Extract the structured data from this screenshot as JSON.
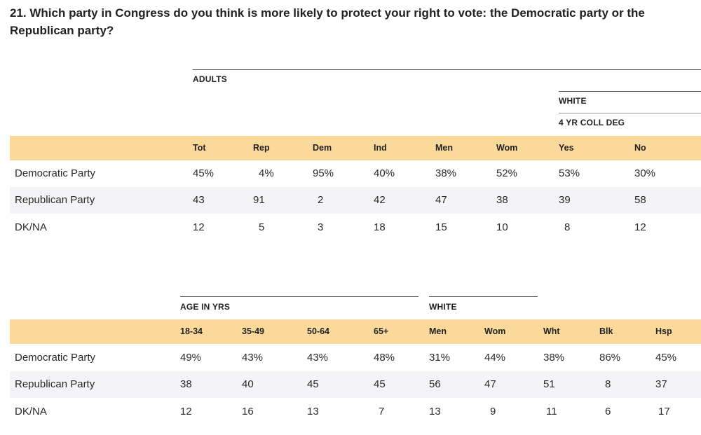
{
  "question": "21. Which party in Congress do you think is more likely to protect your right to vote: the Democratic party or the Republican party?",
  "table1": {
    "group_adults": "ADULTS",
    "group_white": "WHITE",
    "group_college": "4 YR COLL DEG",
    "columns": [
      "Tot",
      "Rep",
      "Dem",
      "Ind",
      "Men",
      "Wom",
      "Yes",
      "No"
    ],
    "rows": [
      {
        "label": "Democratic Party",
        "values": [
          "45%",
          "4%",
          "95%",
          "40%",
          "38%",
          "52%",
          "53%",
          "30%"
        ]
      },
      {
        "label": "Republican Party",
        "values": [
          "43",
          "91",
          "2",
          "42",
          "47",
          "38",
          "39",
          "58"
        ]
      },
      {
        "label": "DK/NA",
        "values": [
          "12",
          "5",
          "3",
          "18",
          "15",
          "10",
          "8",
          "12"
        ]
      }
    ]
  },
  "table2": {
    "group_age": "AGE IN YRS",
    "group_white": "WHITE",
    "columns": [
      "18-34",
      "35-49",
      "50-64",
      "65+",
      "Men",
      "Wom",
      "Wht",
      "Blk",
      "Hsp"
    ],
    "rows": [
      {
        "label": "Democratic Party",
        "values": [
          "49%",
          "43%",
          "43%",
          "48%",
          "31%",
          "44%",
          "38%",
          "86%",
          "45%"
        ]
      },
      {
        "label": "Republican Party",
        "values": [
          "38",
          "40",
          "45",
          "45",
          "56",
          "47",
          "51",
          "8",
          "37"
        ]
      },
      {
        "label": "DK/NA",
        "values": [
          "12",
          "16",
          "13",
          "7",
          "13",
          "9",
          "11",
          "6",
          "17"
        ]
      }
    ]
  },
  "colors": {
    "header_band": "#fbd99a",
    "alt_row": "#f4f4f6"
  }
}
